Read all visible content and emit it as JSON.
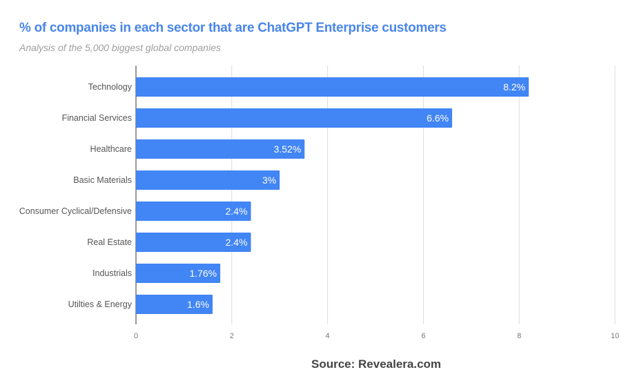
{
  "chart_data": {
    "type": "bar",
    "orientation": "horizontal",
    "title": "% of companies in each sector that are ChatGPT Enterprise customers",
    "subtitle": "Analysis of the 5,000 biggest global companies",
    "categories": [
      "Technology",
      "Financial Services",
      "Healthcare",
      "Basic Materials",
      "Consumer Cyclical/Defensive",
      "Real Estate",
      "Industrials",
      "Utilties & Energy"
    ],
    "values": [
      8.2,
      6.6,
      3.52,
      3,
      2.4,
      2.4,
      1.76,
      1.6
    ],
    "data_labels": [
      "8.2%",
      "6.6%",
      "3.52%",
      "3%",
      "2.4%",
      "2.4%",
      "1.76%",
      "1.6%"
    ],
    "xlim": [
      0,
      10
    ],
    "xticks": [
      "0",
      "2",
      "4",
      "6",
      "8",
      "10"
    ],
    "xlabel": "",
    "ylabel": "",
    "grid": true,
    "legend": "none",
    "bar_color": "#4285f4",
    "source": "Source: Revealera.com"
  }
}
